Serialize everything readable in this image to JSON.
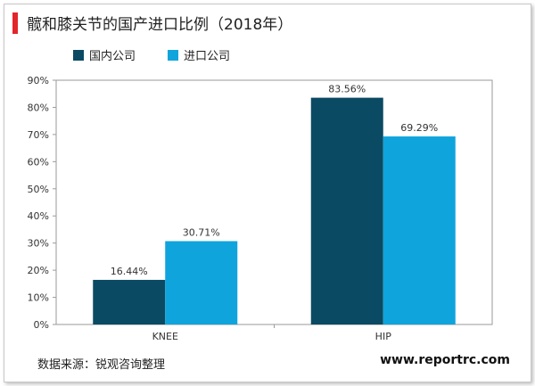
{
  "title": "髋和膝关节的国产进口比例（2018年）",
  "colors": {
    "accent": "#e3262b",
    "domestic": "#0b4a63",
    "imported": "#0fa4dc"
  },
  "legend": [
    {
      "label": "国内公司",
      "color": "#0b4a63"
    },
    {
      "label": "进口公司",
      "color": "#0fa4dc"
    }
  ],
  "chart_data": {
    "type": "bar",
    "categories": [
      "KNEE",
      "HIP"
    ],
    "series": [
      {
        "name": "国内公司",
        "values": [
          16.44,
          83.56
        ],
        "labels": [
          "16.44%",
          "83.56%"
        ]
      },
      {
        "name": "进口公司",
        "values": [
          30.71,
          69.29
        ],
        "labels": [
          "30.71%",
          "69.29%"
        ]
      }
    ],
    "ylim": [
      0,
      90
    ],
    "yticks": [
      "0%",
      "10%",
      "20%",
      "30%",
      "40%",
      "50%",
      "60%",
      "70%",
      "80%",
      "90%"
    ],
    "legend_position": "top-left",
    "grid": false
  },
  "source": "数据来源：锐观咨询整理",
  "website": "www.reportrc.com"
}
